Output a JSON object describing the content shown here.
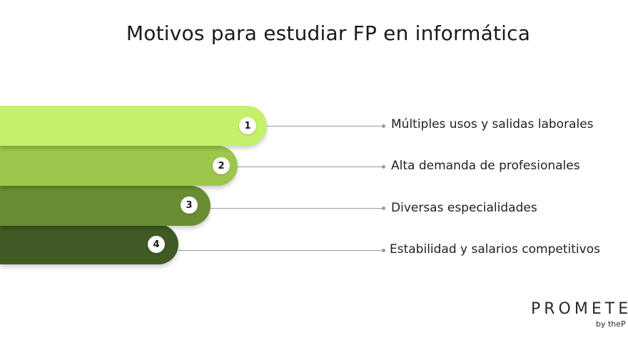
{
  "title": "Motivos para estudiar FP en informática",
  "items": [
    {
      "number": "1",
      "label": "Múltiples usos y salidas laborales",
      "color": "#c4f06a"
    },
    {
      "number": "2",
      "label": "Alta demanda de profesionales",
      "color": "#9dc64c"
    },
    {
      "number": "3",
      "label": "Diversas especialidades",
      "color": "#6a8d33"
    },
    {
      "number": "4",
      "label": "Estabilidad y salarios competitivos",
      "color": "#3f5a22"
    }
  ],
  "logo": {
    "main": "PROMETE",
    "sub": "by theP"
  }
}
